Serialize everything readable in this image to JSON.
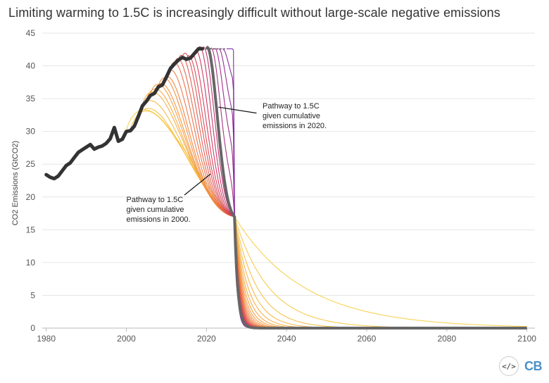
{
  "title": "Limiting warming to 1.5C is increasingly difficult without large-scale negative emissions",
  "ui": {
    "embed_label": "</>",
    "logo_label": "CB"
  },
  "colors": {
    "historical": "#333333",
    "highlight": "#666666",
    "yellow": "#f7d04a",
    "orange": "#f28a3c",
    "red": "#d2325a",
    "purple": "#7a1fa0",
    "grid": "#e6e6e6",
    "axis": "#bbbbbb"
  },
  "chart_data": {
    "type": "line",
    "title": "Limiting warming to 1.5C is increasingly difficult without large-scale negative emissions",
    "xlabel": "",
    "ylabel": "CO2 Emissions (GtCO2)",
    "xlim": [
      1979,
      2102
    ],
    "ylim": [
      0,
      45
    ],
    "x_ticks": [
      1980,
      2000,
      2020,
      2040,
      2060,
      2080,
      2100
    ],
    "y_ticks": [
      0,
      5,
      10,
      15,
      20,
      25,
      30,
      35,
      40,
      45
    ],
    "grid": "horizontal",
    "legend": "none",
    "historical": {
      "x": [
        1980,
        1981,
        1982,
        1983,
        1984,
        1985,
        1986,
        1987,
        1988,
        1989,
        1990,
        1991,
        1992,
        1993,
        1994,
        1995,
        1996,
        1997,
        1998,
        1999,
        2000,
        2001,
        2002,
        2003,
        2004,
        2005,
        2006,
        2007,
        2008,
        2009,
        2010,
        2011,
        2012,
        2013,
        2014,
        2015,
        2016,
        2017,
        2018,
        2019
      ],
      "y": [
        23.4,
        23.0,
        22.8,
        23.2,
        24.0,
        24.8,
        25.2,
        26.0,
        26.8,
        27.2,
        27.6,
        28.0,
        27.3,
        27.6,
        27.8,
        28.2,
        28.9,
        30.6,
        28.5,
        28.8,
        30.0,
        30.1,
        30.8,
        32.3,
        33.9,
        34.6,
        35.5,
        35.8,
        36.8,
        37.1,
        38.3,
        39.6,
        40.3,
        40.9,
        41.3,
        41.0,
        41.2,
        41.9,
        42.6,
        42.6
      ]
    },
    "pathway_params": {
      "start_years": [
        2000,
        2001,
        2002,
        2003,
        2004,
        2005,
        2006,
        2007,
        2008,
        2009,
        2010,
        2011,
        2012,
        2013,
        2014,
        2015,
        2016,
        2017,
        2018,
        2019,
        2020,
        2021,
        2022,
        2023,
        2024,
        2025
      ],
      "highlight_start_year": 2020,
      "cross_year": 2027,
      "cross_value": 17
    },
    "annotations": [
      {
        "text": [
          "Pathway to 1.5C",
          "given cumulative",
          "emissions in 2020."
        ],
        "x": 2034,
        "y": 33.5,
        "line_from": [
          2032.5,
          32.8
        ],
        "line_to": [
          2023.0,
          33.7
        ]
      },
      {
        "text": [
          "Pathway to 1.5C",
          "given cumulative",
          "emissions in 2000."
        ],
        "x": 2000,
        "y": 19.2,
        "line_from": [
          2014.5,
          20.3
        ],
        "line_to": [
          2021.0,
          23.5
        ]
      }
    ]
  }
}
